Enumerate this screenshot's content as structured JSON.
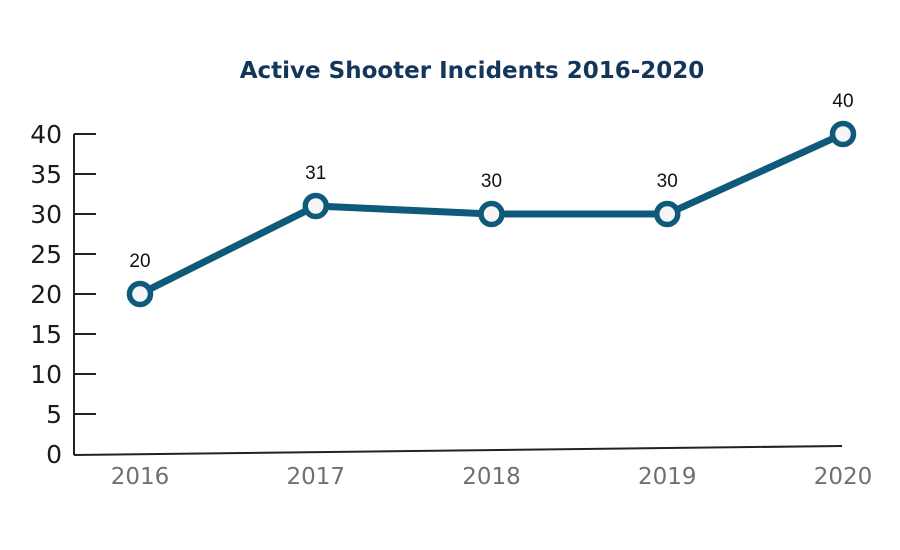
{
  "chart_data": {
    "type": "line",
    "title": "Active Shooter Incidents 2016-2020",
    "xlabel": "",
    "ylabel": "",
    "categories": [
      "2016",
      "2017",
      "2018",
      "2019",
      "2020"
    ],
    "series": [
      {
        "name": "Active Shooter Incidents",
        "values": [
          20,
          31,
          30,
          30,
          40
        ],
        "color": "#0f5a7a"
      }
    ],
    "data_labels": [
      "20",
      "31",
      "30",
      "30",
      "40"
    ],
    "yticks": [
      0,
      5,
      10,
      15,
      20,
      25,
      30,
      35,
      40
    ],
    "ytick_labels": [
      "0",
      "5",
      "10",
      "15",
      "20",
      "25",
      "30",
      "35",
      "40"
    ],
    "ylim": [
      0,
      40
    ],
    "grid": false,
    "legend": "none",
    "marker": "hollow-circle",
    "colors": {
      "line": "#0f5a7a",
      "marker_fill": "#f4f5f7",
      "axis": "#222222",
      "title": "#14365a",
      "xtick": "#707070"
    }
  }
}
